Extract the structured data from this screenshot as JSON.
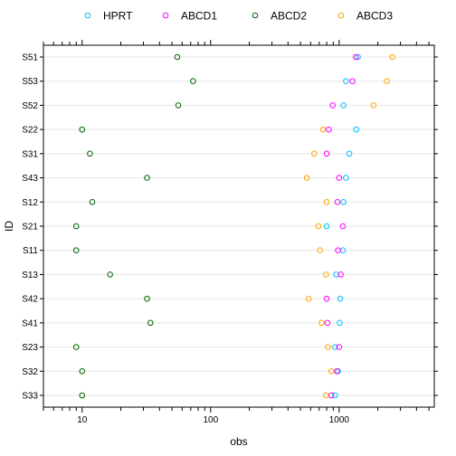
{
  "chart_data": {
    "type": "scatter",
    "xlabel": "obs",
    "ylabel": "ID",
    "x_scale": "log",
    "xlim": [
      5,
      550
    ],
    "xticks": [
      {
        "value": 10,
        "label": "10"
      },
      {
        "value": 100,
        "label": "100"
      },
      {
        "value": 1000,
        "label": "1000"
      }
    ],
    "grid": true,
    "legend_position": "top",
    "categories": [
      "S51",
      "S53",
      "S52",
      "S22",
      "S31",
      "S43",
      "S12",
      "S21",
      "S11",
      "S13",
      "S42",
      "S41",
      "S23",
      "S32",
      "S33"
    ],
    "series": [
      {
        "name": "HPRT",
        "color": "#00bfff",
        "values": [
          1400,
          1130,
          1080,
          1360,
          1200,
          1130,
          1080,
          800,
          1070,
          950,
          1020,
          1010,
          930,
          980,
          930
        ]
      },
      {
        "name": "ABCD1",
        "color": "#ff00ff",
        "values": [
          1350,
          1270,
          890,
          830,
          800,
          1000,
          970,
          1070,
          980,
          1030,
          800,
          810,
          1000,
          960,
          870
        ]
      },
      {
        "name": "ABCD2",
        "color": "#006400",
        "values": [
          55,
          73,
          56,
          10,
          11.5,
          32,
          12,
          9,
          9,
          16.5,
          32,
          34,
          9,
          10,
          10
        ]
      },
      {
        "name": "ABCD3",
        "color": "#ffa500",
        "values": [
          2600,
          2350,
          1850,
          750,
          640,
          560,
          800,
          690,
          710,
          790,
          580,
          730,
          820,
          870,
          790
        ]
      }
    ]
  }
}
